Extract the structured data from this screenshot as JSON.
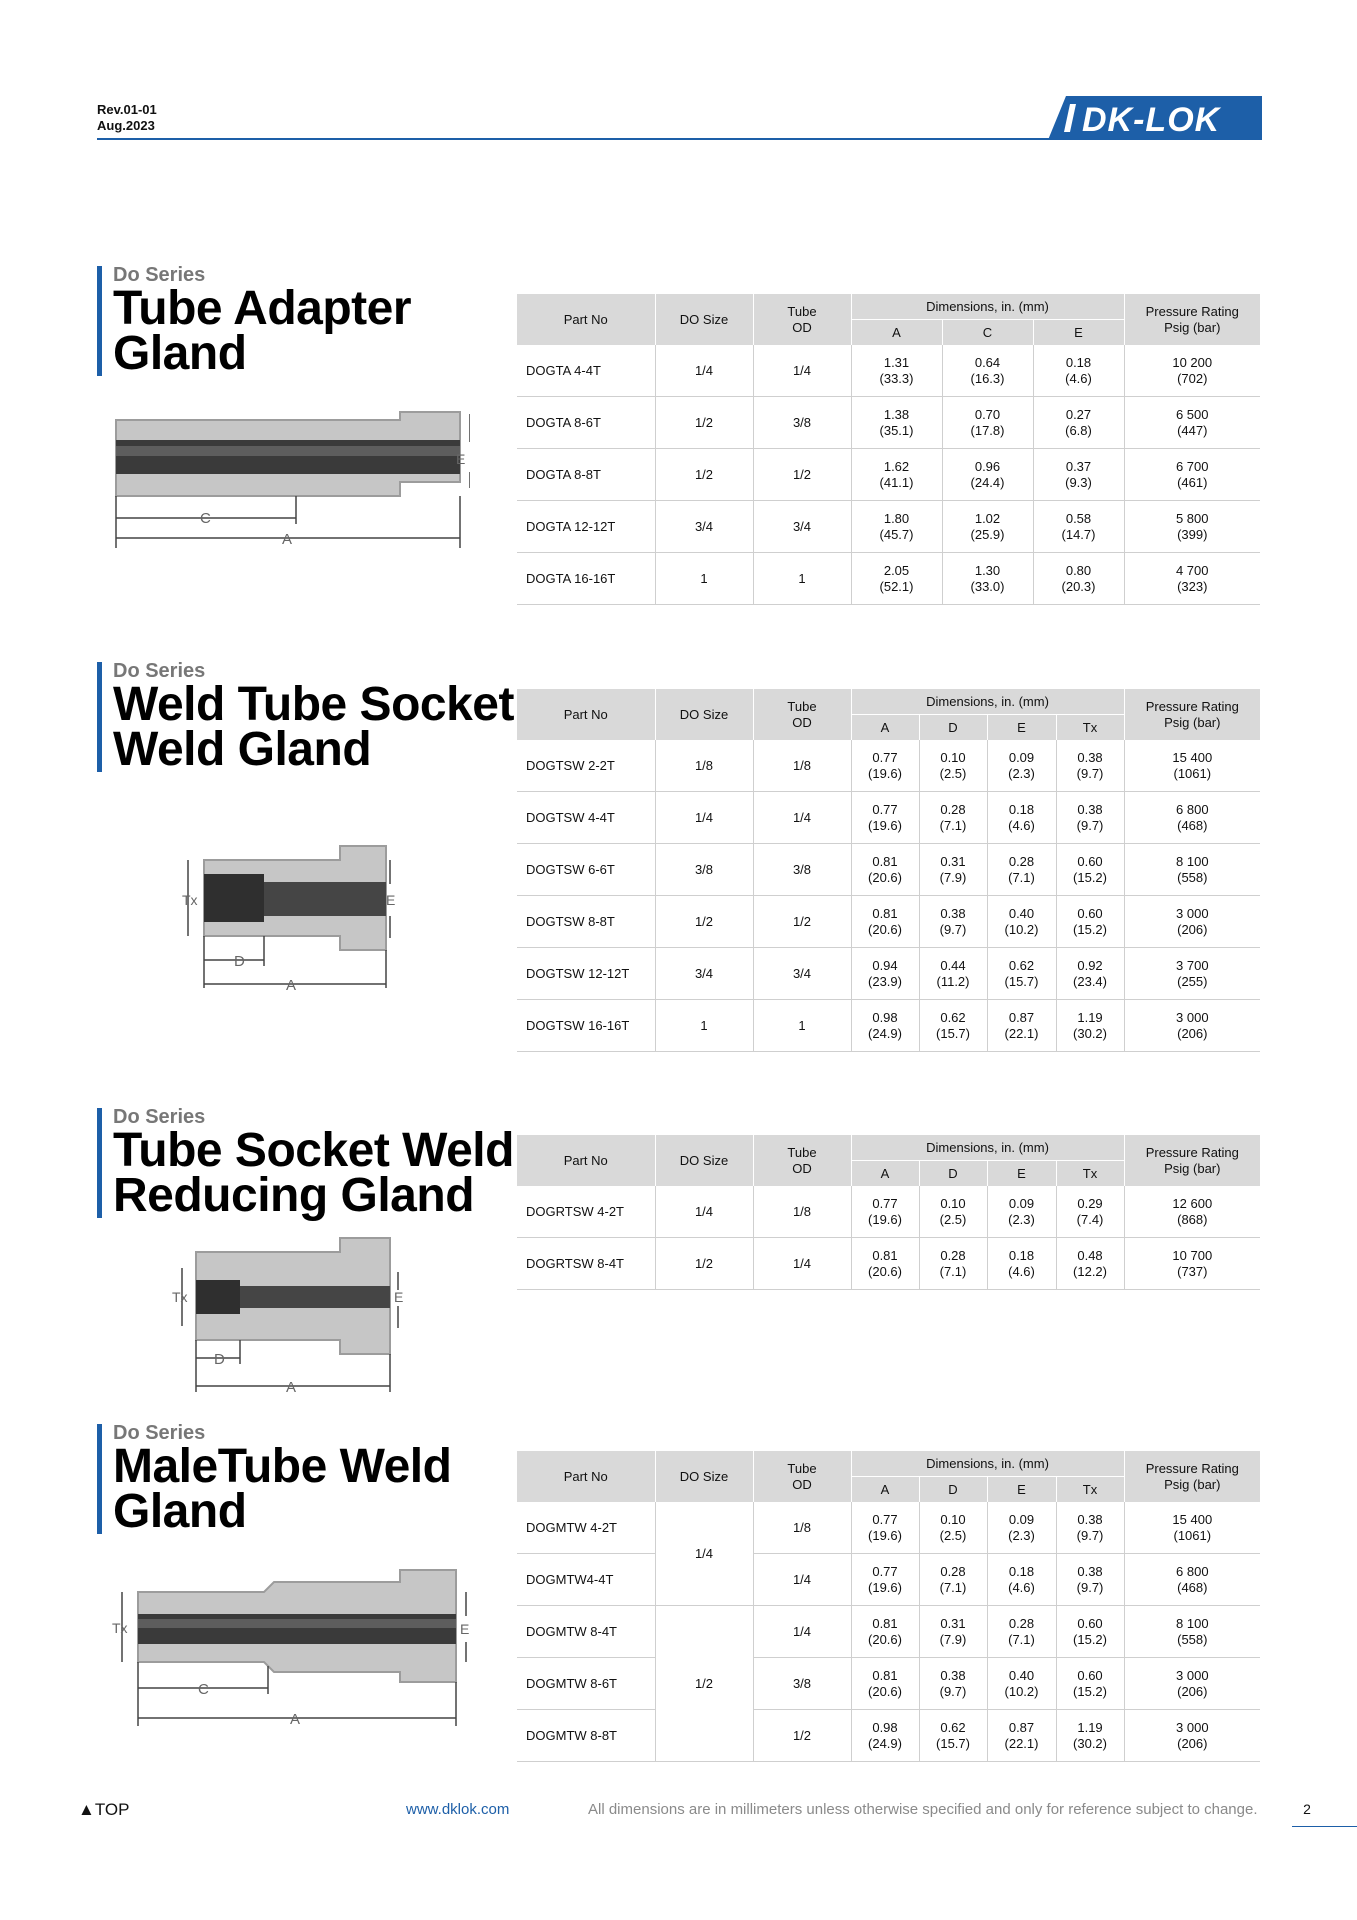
{
  "header": {
    "rev": "Rev.01-01",
    "date": "Aug.2023",
    "logo_text": "DK-LOK"
  },
  "table_header": {
    "part_no": "Part No",
    "do_size": "DO Size",
    "tube_od_1": "Tube",
    "tube_od_2": "OD",
    "dimensions": "Dimensions, in. (mm)",
    "pressure_1": "Pressure Rating",
    "pressure_2": "Psig (bar)"
  },
  "sections": [
    {
      "series": "Do Series",
      "title_line1": "Tube Adapter",
      "title_line2": "Gland",
      "dim_cols": [
        "A",
        "C",
        "E"
      ],
      "rows": [
        {
          "part": "DOGTA 4-4T",
          "size": "1/4",
          "od": "1/4",
          "d": [
            [
              "1.31",
              "(33.3)"
            ],
            [
              "0.64",
              "(16.3)"
            ],
            [
              "0.18",
              "(4.6)"
            ]
          ],
          "p": [
            "10 200",
            "(702)"
          ]
        },
        {
          "part": "DOGTA 8-6T",
          "size": "1/2",
          "od": "3/8",
          "d": [
            [
              "1.38",
              "(35.1)"
            ],
            [
              "0.70",
              "(17.8)"
            ],
            [
              "0.27",
              "(6.8)"
            ]
          ],
          "p": [
            "6 500",
            "(447)"
          ]
        },
        {
          "part": "DOGTA 8-8T",
          "size": "1/2",
          "od": "1/2",
          "d": [
            [
              "1.62",
              "(41.1)"
            ],
            [
              "0.96",
              "(24.4)"
            ],
            [
              "0.37",
              "(9.3)"
            ]
          ],
          "p": [
            "6 700",
            "(461)"
          ]
        },
        {
          "part": "DOGTA 12-12T",
          "size": "3/4",
          "od": "3/4",
          "d": [
            [
              "1.80",
              "(45.7)"
            ],
            [
              "1.02",
              "(25.9)"
            ],
            [
              "0.58",
              "(14.7)"
            ]
          ],
          "p": [
            "5 800",
            "(399)"
          ]
        },
        {
          "part": "DOGTA 16-16T",
          "size": "1",
          "od": "1",
          "d": [
            [
              "2.05",
              "(52.1)"
            ],
            [
              "1.30",
              "(33.0)"
            ],
            [
              "0.80",
              "(20.3)"
            ]
          ],
          "p": [
            "4 700",
            "(323)"
          ]
        }
      ]
    },
    {
      "series": "Do Series",
      "title_line1": "Weld Tube Socket",
      "title_line2": "Weld Gland",
      "dim_cols": [
        "A",
        "D",
        "E",
        "Tx"
      ],
      "rows": [
        {
          "part": "DOGTSW 2-2T",
          "size": "1/8",
          "od": "1/8",
          "d": [
            [
              "0.77",
              "(19.6)"
            ],
            [
              "0.10",
              "(2.5)"
            ],
            [
              "0.09",
              "(2.3)"
            ],
            [
              "0.38",
              "(9.7)"
            ]
          ],
          "p": [
            "15 400",
            "(1061)"
          ]
        },
        {
          "part": "DOGTSW 4-4T",
          "size": "1/4",
          "od": "1/4",
          "d": [
            [
              "0.77",
              "(19.6)"
            ],
            [
              "0.28",
              "(7.1)"
            ],
            [
              "0.18",
              "(4.6)"
            ],
            [
              "0.38",
              "(9.7)"
            ]
          ],
          "p": [
            "6 800",
            "(468)"
          ]
        },
        {
          "part": "DOGTSW 6-6T",
          "size": "3/8",
          "od": "3/8",
          "d": [
            [
              "0.81",
              "(20.6)"
            ],
            [
              "0.31",
              "(7.9)"
            ],
            [
              "0.28",
              "(7.1)"
            ],
            [
              "0.60",
              "(15.2)"
            ]
          ],
          "p": [
            "8 100",
            "(558)"
          ]
        },
        {
          "part": "DOGTSW 8-8T",
          "size": "1/2",
          "od": "1/2",
          "d": [
            [
              "0.81",
              "(20.6)"
            ],
            [
              "0.38",
              "(9.7)"
            ],
            [
              "0.40",
              "(10.2)"
            ],
            [
              "0.60",
              "(15.2)"
            ]
          ],
          "p": [
            "3 000",
            "(206)"
          ]
        },
        {
          "part": "DOGTSW 12-12T",
          "size": "3/4",
          "od": "3/4",
          "d": [
            [
              "0.94",
              "(23.9)"
            ],
            [
              "0.44",
              "(11.2)"
            ],
            [
              "0.62",
              "(15.7)"
            ],
            [
              "0.92",
              "(23.4)"
            ]
          ],
          "p": [
            "3 700",
            "(255)"
          ]
        },
        {
          "part": "DOGTSW 16-16T",
          "size": "1",
          "od": "1",
          "d": [
            [
              "0.98",
              "(24.9)"
            ],
            [
              "0.62",
              "(15.7)"
            ],
            [
              "0.87",
              "(22.1)"
            ],
            [
              "1.19",
              "(30.2)"
            ]
          ],
          "p": [
            "3 000",
            "(206)"
          ]
        }
      ]
    },
    {
      "series": "Do Series",
      "title_line1": "Tube Socket Weld",
      "title_line2": "Reducing Gland",
      "dim_cols": [
        "A",
        "D",
        "E",
        "Tx"
      ],
      "rows": [
        {
          "part": "DOGRTSW 4-2T",
          "size": "1/4",
          "od": "1/8",
          "d": [
            [
              "0.77",
              "(19.6)"
            ],
            [
              "0.10",
              "(2.5)"
            ],
            [
              "0.09",
              "(2.3)"
            ],
            [
              "0.29",
              "(7.4)"
            ]
          ],
          "p": [
            "12 600",
            "(868)"
          ]
        },
        {
          "part": "DOGRTSW 8-4T",
          "size": "1/2",
          "od": "1/4",
          "d": [
            [
              "0.81",
              "(20.6)"
            ],
            [
              "0.28",
              "(7.1)"
            ],
            [
              "0.18",
              "(4.6)"
            ],
            [
              "0.48",
              "(12.2)"
            ]
          ],
          "p": [
            "10 700",
            "(737)"
          ]
        }
      ]
    },
    {
      "series": "Do Series",
      "title_line1": "MaleTube Weld",
      "title_line2": "Gland",
      "dim_cols": [
        "A",
        "D",
        "E",
        "Tx"
      ],
      "rows": [
        {
          "part": "DOGMTW 4-2T",
          "size": "1/4",
          "od": "1/8",
          "d": [
            [
              "0.77",
              "(19.6)"
            ],
            [
              "0.10",
              "(2.5)"
            ],
            [
              "0.09",
              "(2.3)"
            ],
            [
              "0.38",
              "(9.7)"
            ]
          ],
          "p": [
            "15 400",
            "(1061)"
          ]
        },
        {
          "part": "DOGMTW4-4T",
          "size": "1/4",
          "od": "1/4",
          "d": [
            [
              "0.77",
              "(19.6)"
            ],
            [
              "0.28",
              "(7.1)"
            ],
            [
              "0.18",
              "(4.6)"
            ],
            [
              "0.38",
              "(9.7)"
            ]
          ],
          "p": [
            "6 800",
            "(468)"
          ]
        },
        {
          "part": "DOGMTW 8-4T",
          "size": "1/2",
          "od": "1/4",
          "d": [
            [
              "0.81",
              "(20.6)"
            ],
            [
              "0.31",
              "(7.9)"
            ],
            [
              "0.28",
              "(7.1)"
            ],
            [
              "0.60",
              "(15.2)"
            ]
          ],
          "p": [
            "8 100",
            "(558)"
          ]
        },
        {
          "part": "DOGMTW 8-6T",
          "size": "1/2",
          "od": "3/8",
          "d": [
            [
              "0.81",
              "(20.6)"
            ],
            [
              "0.38",
              "(9.7)"
            ],
            [
              "0.40",
              "(10.2)"
            ],
            [
              "0.60",
              "(15.2)"
            ]
          ],
          "p": [
            "3 000",
            "(206)"
          ]
        },
        {
          "part": "DOGMTW 8-8T",
          "size": "1/2",
          "od": "1/2",
          "d": [
            [
              "0.98",
              "(24.9)"
            ],
            [
              "0.62",
              "(15.7)"
            ],
            [
              "0.87",
              "(22.1)"
            ],
            [
              "1.19",
              "(30.2)"
            ]
          ],
          "p": [
            "3 000",
            "(206)"
          ]
        }
      ]
    }
  ],
  "drawing_labels": {
    "a": "A",
    "c": "C",
    "d": "D",
    "e": "E",
    "tx": "Tx"
  },
  "footer": {
    "top_link": "▲TOP",
    "url": "www.dklok.com",
    "note": "All dimensions are in millimeters unless otherwise specified and only for reference subject to change.",
    "page": "2"
  }
}
